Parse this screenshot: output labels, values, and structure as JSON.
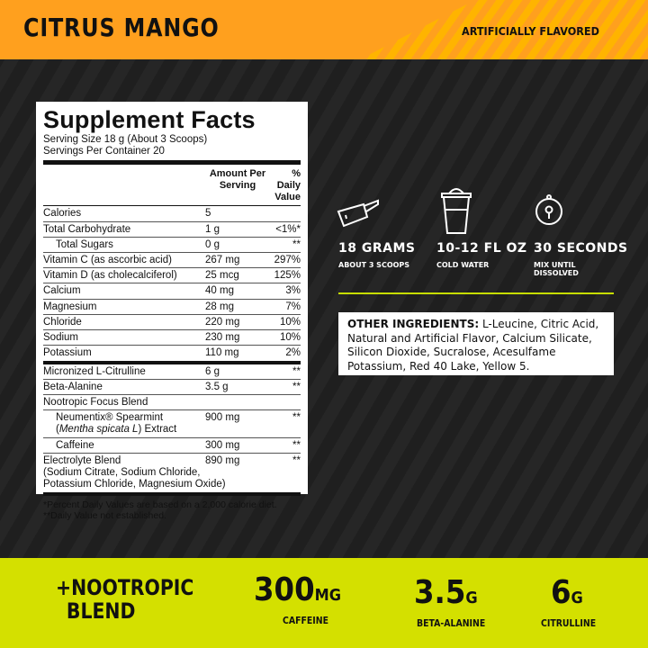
{
  "header": {
    "flavor": "CITRUS MANGO",
    "note": "ARTIFICIALLY FLAVORED",
    "color": "#FFA01E"
  },
  "facts": {
    "title": "Supplement Facts",
    "serving_size": "Serving Size 18 g (About 3 Scoops)",
    "servings": "Servings Per Container 20",
    "col_amount": "Amount Per Serving",
    "col_dv": "% Daily Value",
    "rows1": [
      {
        "name": "Calories",
        "amount": "5",
        "dv": ""
      },
      {
        "name": "Total Carbohydrate",
        "amount": "1 g",
        "dv": "<1%*"
      },
      {
        "name": "Total Sugars",
        "amount": "0 g",
        "dv": "**"
      },
      {
        "name": "Vitamin C (as ascorbic acid)",
        "amount": "267 mg",
        "dv": "297%"
      },
      {
        "name": "Vitamin D (as cholecalciferol)",
        "amount": "25 mcg",
        "dv": "125%"
      },
      {
        "name": "Calcium",
        "amount": "40 mg",
        "dv": "3%"
      },
      {
        "name": "Magnesium",
        "amount": "28 mg",
        "dv": "7%"
      },
      {
        "name": "Chloride",
        "amount": "220 mg",
        "dv": "10%"
      },
      {
        "name": "Sodium",
        "amount": "230 mg",
        "dv": "10%"
      },
      {
        "name": "Potassium",
        "amount": "110 mg",
        "dv": "2%"
      }
    ],
    "rows2": [
      {
        "name": "Micronized L-Citrulline",
        "amount": "6 g",
        "dv": "**"
      },
      {
        "name": "Beta-Alanine",
        "amount": "3.5 g",
        "dv": "**"
      },
      {
        "name": "Nootropic Focus Blend",
        "amount": "",
        "dv": ""
      },
      {
        "name": "Neumentix® Spearmint",
        "name_italic": "Mentha spicata L",
        "name_end": ") Extract",
        "amount": "900 mg",
        "dv": "**"
      },
      {
        "name": "Caffeine",
        "amount": "300 mg",
        "dv": "**"
      },
      {
        "name": "Electrolyte Blend",
        "name2": "(Sodium Citrate, Sodium Chloride,",
        "name3": "Potassium Chloride, Magnesium Oxide)",
        "amount": "890 mg",
        "dv": "**"
      }
    ],
    "foot1": "*Percent Daily Values are based on a 2,000 calorie diet.",
    "foot2": "**Daily Value not established."
  },
  "directions": [
    {
      "icon": "scoop-icon",
      "title": "18 GRAMS",
      "sub": "ABOUT 3 SCOOPS"
    },
    {
      "icon": "shaker-icon",
      "title": "10-12 FL OZ",
      "sub": "COLD WATER"
    },
    {
      "icon": "timer-icon",
      "title": "30 SECONDS",
      "sub": "MIX UNTIL DISSOLVED"
    }
  ],
  "other": {
    "label": "OTHER INGREDIENTS:",
    "text": " L-Leucine, Citric Acid, Natural and Artificial Flavor, Calcium Silicate, Silicon Dioxide, Sucralose, Acesulfame Potassium, Red 40 Lake, Yellow 5."
  },
  "band": {
    "color": "#D4E000",
    "nootropic1": "+NOOTROPIC",
    "nootropic2": "BLEND",
    "stats": [
      {
        "value": "300",
        "unit": "MG",
        "label": "CAFFEINE"
      },
      {
        "value": "3.5",
        "unit": "G",
        "label": "BETA-ALANINE"
      },
      {
        "value": "6",
        "unit": "G",
        "label": "CITRULLINE"
      }
    ]
  }
}
